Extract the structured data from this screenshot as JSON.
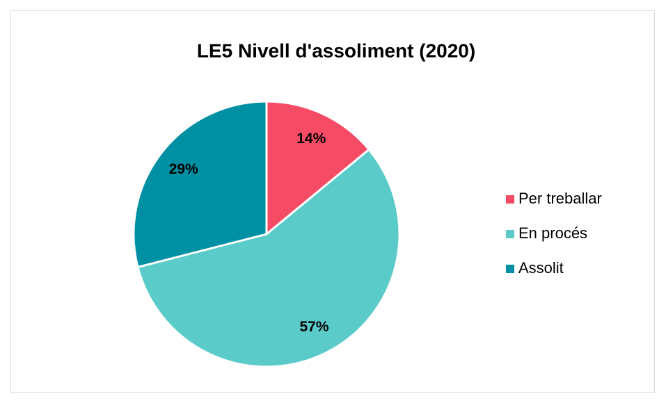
{
  "chart_data": {
    "type": "pie",
    "title": "LE5 Nivell d'assoliment (2020)",
    "categories": [
      "Per treballar",
      "En procés",
      "Assolit"
    ],
    "values": [
      14,
      57,
      29
    ],
    "value_labels": [
      "14%",
      "57%",
      "29%"
    ],
    "colors": [
      "#f64b65",
      "#5bcbca",
      "#0090a4"
    ],
    "legend": "right"
  }
}
